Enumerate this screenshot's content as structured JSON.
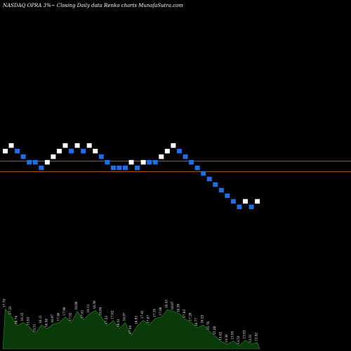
{
  "header": {
    "ticker": "NASDAQ OPRA",
    "brick_size": "3%",
    "description": "Closing Daily data",
    "chart_kind": "Renko",
    "site": "charts MunafaSutra.com"
  },
  "colors": {
    "background": "#000000",
    "up_brick": "#ffffff",
    "down_brick": "#1e6fe6",
    "reference_line": "#a0521a",
    "volume_fill": "#0a3a0a",
    "volume_stroke": "#2f8a2f",
    "labels": "#ffffff"
  },
  "chart_data": {
    "type": "renko",
    "title": "NASDAQ OPRA 3%~ Closing Daily data Renko charts MunafaSutra.com",
    "brick_percent": 3,
    "levels": [
      0,
      1,
      0,
      -1,
      -2,
      -2,
      -3,
      -2,
      -1,
      0,
      1,
      0,
      1,
      0,
      1,
      0,
      -1,
      -2,
      -3,
      -3,
      -3,
      -2,
      -3,
      -2,
      -2,
      -2,
      -1,
      0,
      1,
      0,
      -1,
      -2,
      -3,
      -4,
      -5,
      -6,
      -7,
      -8,
      -9,
      -10,
      -9,
      -10,
      -9
    ],
    "up": [
      true,
      true,
      false,
      false,
      false,
      false,
      false,
      true,
      true,
      true,
      true,
      false,
      true,
      false,
      true,
      true,
      false,
      false,
      false,
      false,
      false,
      true,
      false,
      true,
      false,
      false,
      true,
      true,
      true,
      false,
      false,
      false,
      false,
      false,
      false,
      false,
      false,
      false,
      false,
      false,
      true,
      false,
      true
    ],
    "reference_lines": [
      "line-1",
      "line-2"
    ],
    "volume": {
      "values": [
        1.0,
        0.82,
        0.58,
        0.66,
        0.55,
        0.38,
        0.6,
        0.51,
        0.62,
        0.66,
        0.8,
        0.66,
        0.94,
        0.73,
        0.87,
        0.96,
        0.8,
        0.58,
        0.71,
        0.51,
        0.66,
        0.34,
        0.58,
        0.72,
        0.6,
        0.76,
        0.8,
        0.98,
        0.94,
        0.88,
        0.74,
        0.66,
        0.53,
        0.6,
        0.44,
        0.32,
        0.18,
        0.12,
        0.2,
        0.08,
        0.22,
        0.12,
        0.16
      ],
      "labels": [
        "17.78",
        "17.23",
        "16.74",
        "16.33",
        "15.93",
        "15.51",
        "16.11",
        "16.58",
        "16.97",
        "17.48",
        "17.96",
        "17.52",
        "18.06",
        "17.61",
        "18.11",
        "18.59",
        "18.04",
        "17.53",
        "17.02",
        "16.51",
        "16.97",
        "17.44",
        "16.93",
        "17.41",
        "17.87",
        "17.35",
        "17.88",
        "18.43",
        "18.97",
        "18.39",
        "17.83",
        "17.29",
        "16.77",
        "16.25",
        "15.76",
        "15.28",
        "14.82",
        "14.38",
        "13.95",
        "13.53",
        "13.93",
        "13.51",
        "13.92"
      ]
    }
  }
}
